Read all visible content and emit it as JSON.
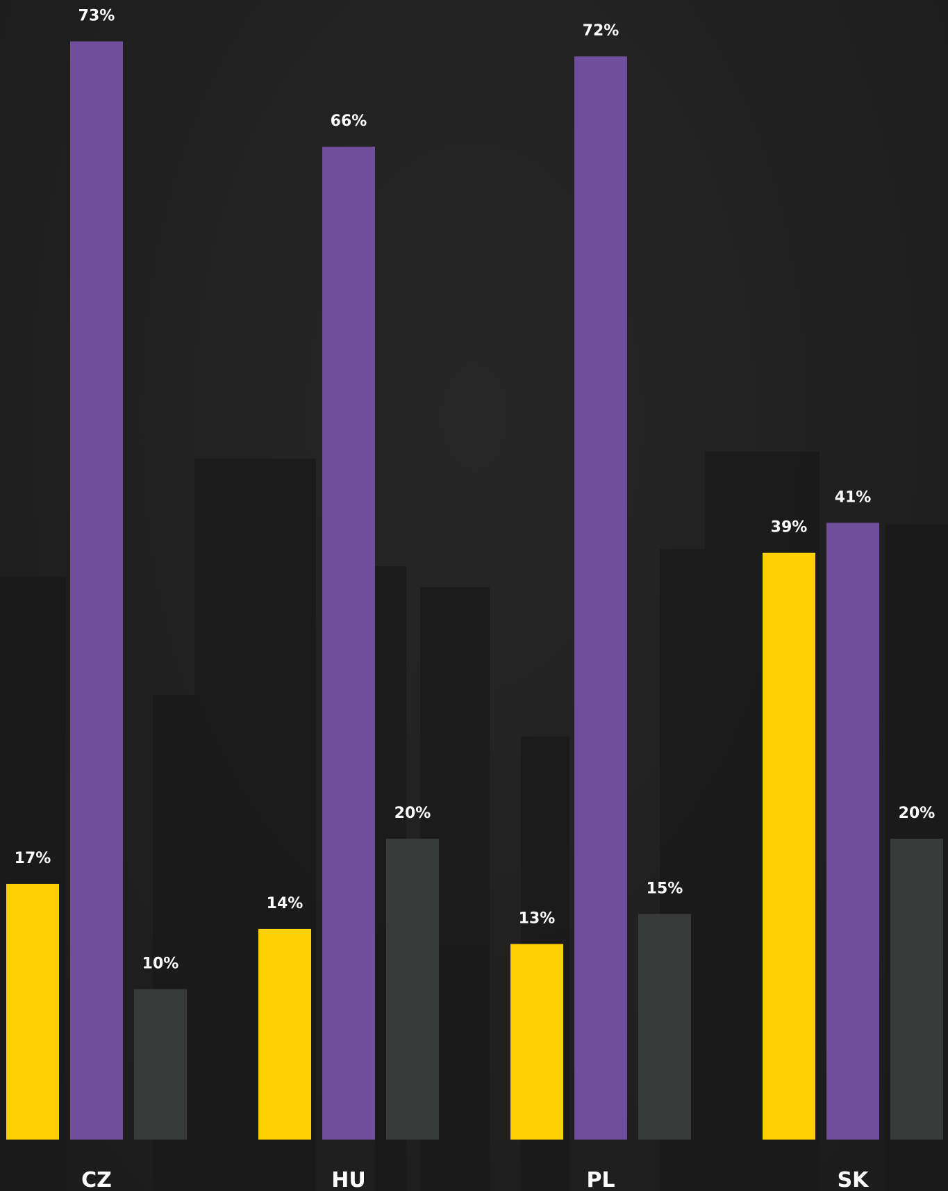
{
  "chart_data": {
    "type": "bar",
    "categories": [
      "CZ",
      "HU",
      "PL",
      "SK"
    ],
    "series": [
      {
        "values": [
          17,
          14,
          13,
          39
        ],
        "color": "#ffd000"
      },
      {
        "values": [
          73,
          66,
          72,
          41
        ],
        "color": "#6f4f9b"
      },
      {
        "values": [
          10,
          20,
          15,
          20
        ],
        "color": "#383a39"
      }
    ],
    "value_suffix": "%",
    "ylim": [
      0,
      76
    ],
    "grid": false,
    "legend": "none"
  }
}
